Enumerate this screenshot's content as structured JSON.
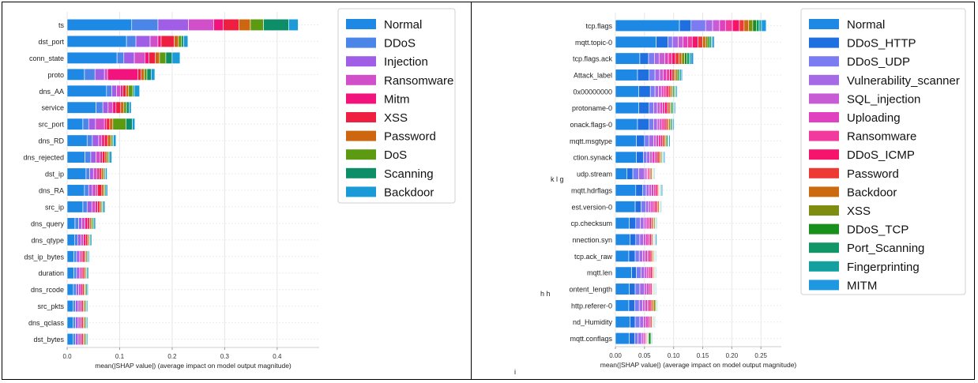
{
  "stray_marks": {
    "a": "k l g",
    "b": "h h",
    "c": "i"
  },
  "chart_data": [
    {
      "type": "bar",
      "stacked": true,
      "orientation": "horizontal",
      "xlabel": "mean(|SHAP value|) (average impact on model output magnitude)",
      "xlim": [
        0,
        0.48
      ],
      "xticks": [
        0.0,
        0.1,
        0.2,
        0.3,
        0.4
      ],
      "xtick_labels": [
        "0.0",
        "0.1",
        "0.2",
        "0.3",
        "0.4"
      ],
      "grid": true,
      "legend_position": "right",
      "categories": [
        "ts",
        "dst_port",
        "conn_state",
        "proto",
        "dns_AA",
        "service",
        "src_port",
        "dns_RD",
        "dns_rejected",
        "dst_ip",
        "dns_RA",
        "src_ip",
        "dns_query",
        "dns_qtype",
        "dst_ip_bytes",
        "duration",
        "dns_rcode",
        "src_pkts",
        "dns_qclass",
        "dst_bytes"
      ],
      "series": [
        {
          "name": "Normal",
          "color": "#1E88E5",
          "values": [
            0.123,
            0.113,
            0.095,
            0.033,
            0.075,
            0.055,
            0.03,
            0.038,
            0.034,
            0.036,
            0.033,
            0.03,
            0.015,
            0.014,
            0.013,
            0.013,
            0.012,
            0.011,
            0.011,
            0.011
          ]
        },
        {
          "name": "DDoS",
          "color": "#4C85E8",
          "values": [
            0.05,
            0.018,
            0.013,
            0.02,
            0.01,
            0.013,
            0.011,
            0.01,
            0.011,
            0.007,
            0.008,
            0.008,
            0.007,
            0.006,
            0.005,
            0.005,
            0.005,
            0.005,
            0.005,
            0.005
          ]
        },
        {
          "name": "Injection",
          "color": "#A05EE6",
          "values": [
            0.058,
            0.027,
            0.02,
            0.018,
            0.009,
            0.01,
            0.013,
            0.012,
            0.01,
            0.007,
            0.007,
            0.009,
            0.006,
            0.006,
            0.005,
            0.005,
            0.005,
            0.005,
            0.005,
            0.005
          ]
        },
        {
          "name": "Ransomware",
          "color": "#D14FC8",
          "values": [
            0.048,
            0.015,
            0.02,
            0.006,
            0.008,
            0.009,
            0.017,
            0.006,
            0.008,
            0.007,
            0.007,
            0.007,
            0.006,
            0.005,
            0.004,
            0.004,
            0.004,
            0.004,
            0.004,
            0.004
          ]
        },
        {
          "name": "Mitm",
          "color": "#F2147C",
          "values": [
            0.018,
            0.006,
            0.008,
            0.058,
            0.004,
            0.006,
            0.004,
            0.005,
            0.004,
            0.004,
            0.003,
            0.004,
            0.005,
            0.004,
            0.003,
            0.003,
            0.003,
            0.003,
            0.003,
            0.003
          ]
        },
        {
          "name": "XSS",
          "color": "#EE1F40",
          "values": [
            0.03,
            0.025,
            0.012,
            0.006,
            0.006,
            0.009,
            0.006,
            0.006,
            0.005,
            0.004,
            0.008,
            0.004,
            0.004,
            0.004,
            0.004,
            0.003,
            0.003,
            0.003,
            0.003,
            0.003
          ]
        },
        {
          "name": "Password",
          "color": "#CE6610",
          "values": [
            0.022,
            0.008,
            0.008,
            0.006,
            0.005,
            0.006,
            0.006,
            0.006,
            0.004,
            0.004,
            0.004,
            0.003,
            0.003,
            0.002,
            0.002,
            0.002,
            0.002,
            0.002,
            0.002,
            0.002
          ]
        },
        {
          "name": "DoS",
          "color": "#5C9A12",
          "values": [
            0.025,
            0.006,
            0.012,
            0.005,
            0.008,
            0.005,
            0.025,
            0.003,
            0.003,
            0.002,
            0.002,
            0.002,
            0.003,
            0.002,
            0.002,
            0.002,
            0.002,
            0.002,
            0.002,
            0.002
          ]
        },
        {
          "name": "Scanning",
          "color": "#0E8E68",
          "values": [
            0.048,
            0.004,
            0.012,
            0.008,
            0.003,
            0.005,
            0.012,
            0.002,
            0.002,
            0.002,
            0.002,
            0.002,
            0.002,
            0.002,
            0.002,
            0.002,
            0.002,
            0.002,
            0.002,
            0.002
          ]
        },
        {
          "name": "Backdoor",
          "color": "#1A9AD6",
          "values": [
            0.018,
            0.008,
            0.015,
            0.007,
            0.01,
            0.004,
            0.005,
            0.005,
            0.004,
            0.003,
            0.003,
            0.003,
            0.003,
            0.002,
            0.002,
            0.002,
            0.002,
            0.002,
            0.002,
            0.002
          ]
        }
      ]
    },
    {
      "type": "bar",
      "stacked": true,
      "orientation": "horizontal",
      "xlabel": "mean(|SHAP value|) (average impact on model output magnitude)",
      "xlim": [
        0,
        0.285
      ],
      "xticks": [
        0.0,
        0.05,
        0.1,
        0.15,
        0.2,
        0.25
      ],
      "xtick_labels": [
        "0.00",
        "0.05",
        "0.10",
        "0.15",
        "0.20",
        "0.25"
      ],
      "grid": true,
      "legend_position": "right",
      "categories": [
        "tcp.flags",
        "mqtt.topic-0",
        "tcp.flags.ack",
        "Attack_label",
        "0x00000000",
        "protoname-0",
        "onack.flags-0",
        "mqtt.msgtype",
        "ction.synack",
        "udp.stream",
        "mqtt.hdrflags",
        "est.version-0",
        "cp.checksum",
        "nnection.syn",
        "tcp.ack_raw",
        "mqtt.len",
        "ontent_length",
        "http.referer-0",
        "nd_Humidity",
        "mqtt.conflags"
      ],
      "series": [
        {
          "name": "Normal",
          "color": "#1E88E5",
          "values": [
            0.11,
            0.07,
            0.042,
            0.038,
            0.04,
            0.04,
            0.038,
            0.036,
            0.036,
            0.02,
            0.035,
            0.034,
            0.024,
            0.025,
            0.023,
            0.028,
            0.024,
            0.023,
            0.025,
            0.024
          ]
        },
        {
          "name": "DDoS_HTTP",
          "color": "#1E6FE0",
          "values": [
            0.02,
            0.02,
            0.015,
            0.02,
            0.02,
            0.018,
            0.02,
            0.014,
            0.012,
            0.01,
            0.012,
            0.01,
            0.011,
            0.01,
            0.011,
            0.008,
            0.01,
            0.01,
            0.009,
            0.009
          ]
        },
        {
          "name": "DDoS_UDP",
          "color": "#7C7CF2",
          "values": [
            0.025,
            0.008,
            0.01,
            0.01,
            0.008,
            0.008,
            0.008,
            0.008,
            0.006,
            0.01,
            0.006,
            0.008,
            0.008,
            0.007,
            0.007,
            0.008,
            0.008,
            0.008,
            0.008,
            0.006
          ]
        },
        {
          "name": "Vulnerability_scanner",
          "color": "#A66AE6",
          "values": [
            0.012,
            0.01,
            0.008,
            0.008,
            0.006,
            0.006,
            0.006,
            0.008,
            0.005,
            0.01,
            0.005,
            0.005,
            0.006,
            0.006,
            0.006,
            0.006,
            0.008,
            0.006,
            0.006,
            0.006
          ]
        },
        {
          "name": "SQL_injection",
          "color": "#C75CD5",
          "values": [
            0.012,
            0.008,
            0.01,
            0.006,
            0.005,
            0.005,
            0.004,
            0.004,
            0.004,
            0.003,
            0.004,
            0.004,
            0.004,
            0.004,
            0.004,
            0.004,
            0.004,
            0.004,
            0.004,
            0.003
          ]
        },
        {
          "name": "Uploading",
          "color": "#E041BF",
          "values": [
            0.01,
            0.008,
            0.006,
            0.006,
            0.004,
            0.004,
            0.004,
            0.004,
            0.004,
            0.002,
            0.004,
            0.004,
            0.003,
            0.004,
            0.004,
            0.003,
            0.004,
            0.004,
            0.004,
            0.003
          ]
        },
        {
          "name": "Ransomware",
          "color": "#F23A9E",
          "values": [
            0.012,
            0.008,
            0.006,
            0.005,
            0.004,
            0.004,
            0.004,
            0.004,
            0.003,
            0.002,
            0.003,
            0.003,
            0.003,
            0.003,
            0.003,
            0.003,
            0.003,
            0.003,
            0.003,
            0.002
          ]
        },
        {
          "name": "DDoS_ICMP",
          "color": "#F5136B",
          "values": [
            0.012,
            0.01,
            0.006,
            0.004,
            0.004,
            0.004,
            0.003,
            0.003,
            0.003,
            0.002,
            0.003,
            0.003,
            0.003,
            0.003,
            0.003,
            0.003,
            0.002,
            0.003,
            0.002,
            0.001
          ]
        },
        {
          "name": "Password",
          "color": "#EE3A35",
          "values": [
            0.008,
            0.008,
            0.006,
            0.004,
            0.003,
            0.003,
            0.003,
            0.003,
            0.003,
            0.002,
            0.002,
            0.002,
            0.002,
            0.002,
            0.002,
            0.002,
            0.001,
            0.002,
            0.002,
            0.001
          ]
        },
        {
          "name": "Backdoor",
          "color": "#CC6A12",
          "values": [
            0.008,
            0.005,
            0.005,
            0.003,
            0.003,
            0.002,
            0.002,
            0.002,
            0.002,
            0.002,
            0.001,
            0.002,
            0.002,
            0.001,
            0.002,
            0.001,
            0.001,
            0.003,
            0.001,
            0.001
          ]
        },
        {
          "name": "XSS",
          "color": "#7E8C10",
          "values": [
            0.007,
            0.004,
            0.005,
            0.003,
            0.002,
            0.002,
            0.002,
            0.002,
            0.002,
            0.001,
            0.001,
            0.001,
            0.002,
            0.001,
            0.001,
            0.001,
            0.001,
            0.003,
            0.001,
            0.001
          ]
        },
        {
          "name": "DDoS_TCP",
          "color": "#18901B",
          "values": [
            0.006,
            0.003,
            0.004,
            0.002,
            0.002,
            0.002,
            0.002,
            0.002,
            0.001,
            0.001,
            0.001,
            0.001,
            0.001,
            0.001,
            0.001,
            0.001,
            0.001,
            0.001,
            0.001,
            0.004
          ]
        },
        {
          "name": "Port_Scanning",
          "color": "#129668",
          "values": [
            0.005,
            0.003,
            0.004,
            0.002,
            0.002,
            0.002,
            0.002,
            0.001,
            0.001,
            0.001,
            0.001,
            0.001,
            0.001,
            0.001,
            0.001,
            0.001,
            0.001,
            0.001,
            0.001,
            0.001
          ]
        },
        {
          "name": "Fingerprinting",
          "color": "#14A0A0",
          "values": [
            0.004,
            0.002,
            0.003,
            0.002,
            0.001,
            0.001,
            0.001,
            0.001,
            0.001,
            0.001,
            0.001,
            0.001,
            0.001,
            0.001,
            0.001,
            0.001,
            0.001,
            0.001,
            0.001,
            0.001
          ]
        },
        {
          "name": "MITM",
          "color": "#1E98E0",
          "values": [
            0.008,
            0.003,
            0.004,
            0.002,
            0.002,
            0.002,
            0.002,
            0.002,
            0.002,
            0.001,
            0.002,
            0.001,
            0.001,
            0.002,
            0.001,
            0.001,
            0.001,
            0.001,
            0.001,
            0.001
          ]
        }
      ]
    }
  ]
}
